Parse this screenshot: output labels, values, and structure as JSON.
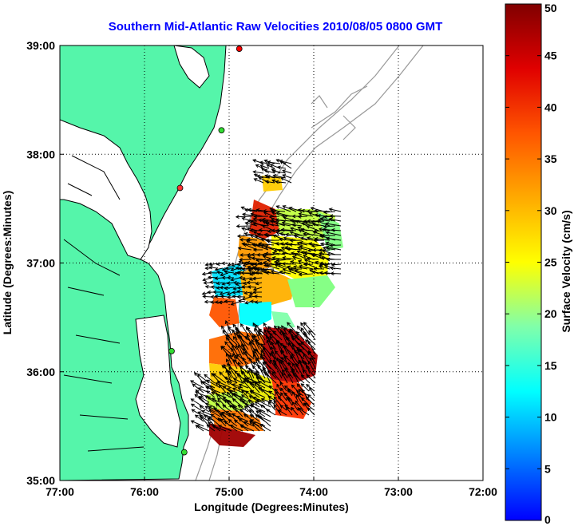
{
  "map": {
    "title": "Southern Mid-Atlantic Raw Velocities 2010/08/05 0800 GMT",
    "xlabel": "Longitude (Degrees:Minutes)",
    "ylabel": "Latitude (Degrees:Minutes)",
    "lon_ticks": [
      {
        "value": -77,
        "label": "77:00"
      },
      {
        "value": -76,
        "label": "76:00"
      },
      {
        "value": -75,
        "label": "75:00"
      },
      {
        "value": -74,
        "label": "74:00"
      },
      {
        "value": -73,
        "label": "73:00"
      },
      {
        "value": -72,
        "label": "72:00"
      }
    ],
    "lat_ticks": [
      {
        "value": 35,
        "label": "35:00"
      },
      {
        "value": 36,
        "label": "36:00"
      },
      {
        "value": 37,
        "label": "37:00"
      },
      {
        "value": 38,
        "label": "38:00"
      },
      {
        "value": 39,
        "label": "39:00"
      }
    ],
    "lon_range": [
      -77,
      -72
    ],
    "lat_range": [
      35,
      39
    ],
    "grid": "dotted",
    "land_color": "#55f5aa",
    "bathymetry_color": "#999999",
    "station_markers": [
      {
        "lon": -74.88,
        "lat": 38.97,
        "color": "#ff0000"
      },
      {
        "lon": -75.09,
        "lat": 38.22,
        "color": "#33dd33"
      },
      {
        "lon": -75.58,
        "lat": 37.69,
        "color": "#ff3333"
      },
      {
        "lon": -75.68,
        "lat": 36.19,
        "color": "#33dd33"
      },
      {
        "lon": -75.53,
        "lat": 35.26,
        "color": "#33dd33"
      }
    ]
  },
  "colorbar": {
    "label": "Surface Velocity (cm/s)",
    "min": 0,
    "max": 50,
    "ticks": [
      "0",
      "5",
      "10",
      "15",
      "20",
      "25",
      "30",
      "35",
      "40",
      "45",
      "50"
    ]
  }
}
